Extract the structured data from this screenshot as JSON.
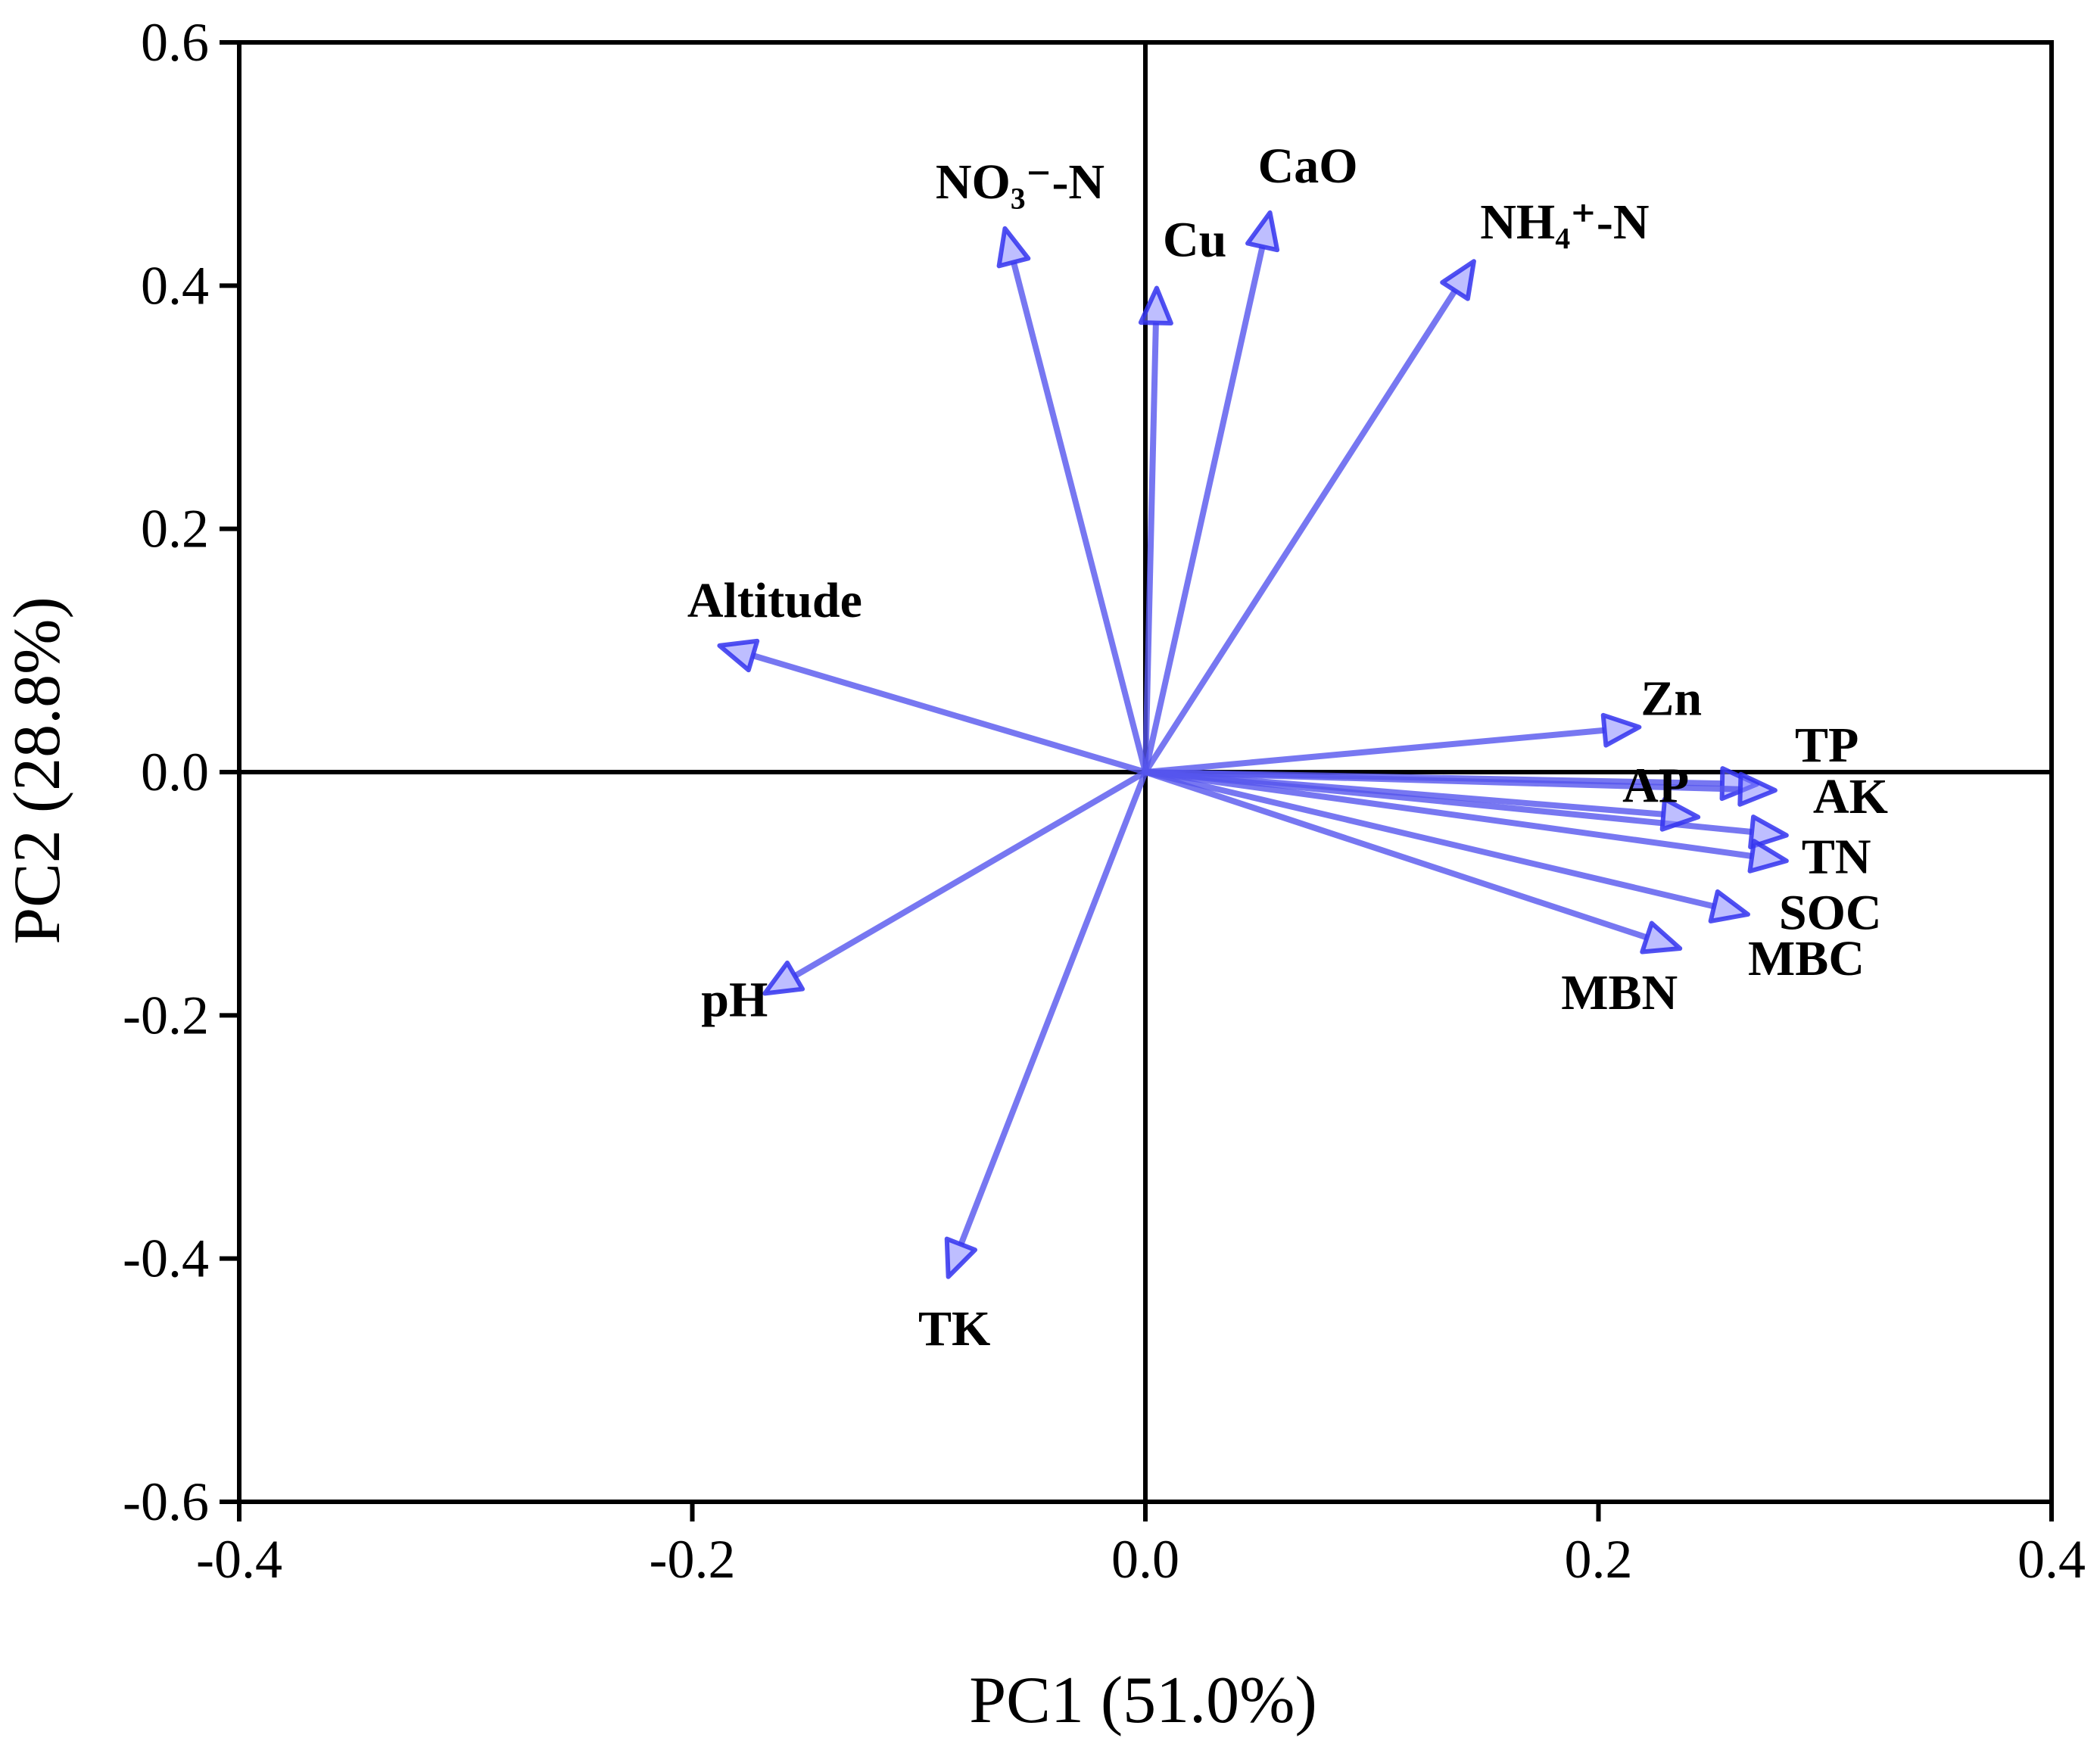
{
  "chart_data": {
    "type": "biplot",
    "title": "",
    "xlabel": "PC1 (51.0%)",
    "ylabel": "PC2 (28.8%)",
    "xlim": [
      -0.4,
      0.4
    ],
    "ylim": [
      -0.6,
      0.6
    ],
    "xticks": [
      -0.4,
      -0.2,
      0.0,
      0.2,
      0.4
    ],
    "xtick_labels": [
      "-0.4",
      "-0.2",
      "0.0",
      "0.2",
      "0.4"
    ],
    "yticks": [
      -0.6,
      -0.4,
      -0.2,
      0.0,
      0.2,
      0.4,
      0.6
    ],
    "ytick_labels": [
      "-0.6",
      "-0.4",
      "-0.2",
      "0.0",
      "0.2",
      "0.4",
      "0.6"
    ],
    "grid": false,
    "arrow_color": "#5555ee",
    "vectors": [
      {
        "name": "NO₃⁻-N",
        "x": -0.062,
        "y": 0.447
      },
      {
        "name": "Cu",
        "x": 0.005,
        "y": 0.398
      },
      {
        "name": "CaO",
        "x": 0.055,
        "y": 0.46
      },
      {
        "name": "NH₄⁺-N",
        "x": 0.145,
        "y": 0.42
      },
      {
        "name": "Altitude",
        "x": -0.188,
        "y": 0.104
      },
      {
        "name": "Zn",
        "x": 0.218,
        "y": 0.037
      },
      {
        "name": "TP",
        "x": 0.27,
        "y": -0.01
      },
      {
        "name": "AK",
        "x": 0.278,
        "y": -0.015
      },
      {
        "name": "TN",
        "x": 0.283,
        "y": -0.052
      },
      {
        "name": "SOC",
        "x": 0.283,
        "y": -0.073
      },
      {
        "name": "AP",
        "x": 0.244,
        "y": -0.037
      },
      {
        "name": "MBC",
        "x": 0.266,
        "y": -0.117
      },
      {
        "name": "MBN",
        "x": 0.236,
        "y": -0.145
      },
      {
        "name": "pH",
        "x": -0.168,
        "y": -0.182
      },
      {
        "name": "TK",
        "x": -0.087,
        "y": -0.415
      }
    ]
  }
}
